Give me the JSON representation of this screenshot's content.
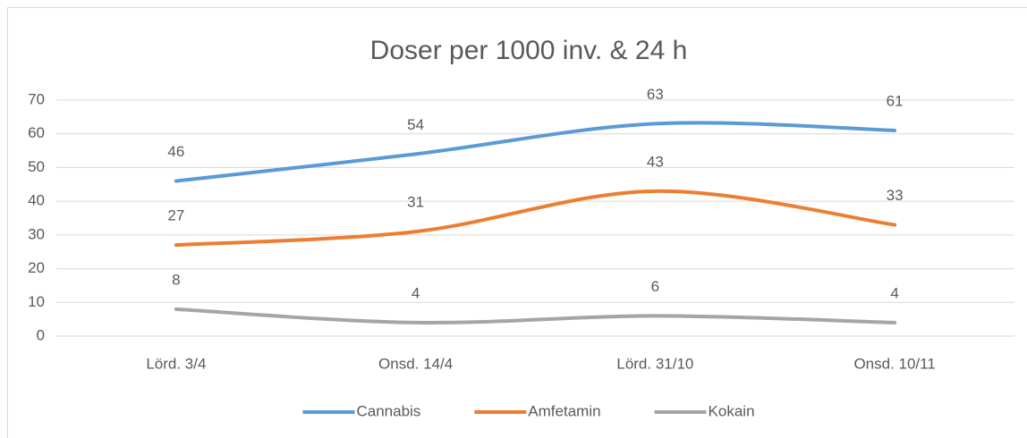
{
  "chart_data": {
    "type": "line",
    "title": "Doser per 1000 inv. & 24 h",
    "categories": [
      "Lörd. 3/4",
      "Onsd. 14/4",
      "Lörd. 31/10",
      "Onsd. 10/11"
    ],
    "series": [
      {
        "name": "Cannabis",
        "color": "#5b9bd5",
        "values": [
          46,
          54,
          63,
          61
        ]
      },
      {
        "name": "Amfetamin",
        "color": "#ed7d31",
        "values": [
          27,
          31,
          43,
          33
        ]
      },
      {
        "name": "Kokain",
        "color": "#a5a5a5",
        "values": [
          8,
          4,
          6,
          4
        ]
      }
    ],
    "ylim": [
      0,
      70
    ],
    "yticks": [
      0,
      10,
      20,
      30,
      40,
      50,
      60,
      70
    ],
    "grid": true,
    "legend": "bottom"
  }
}
